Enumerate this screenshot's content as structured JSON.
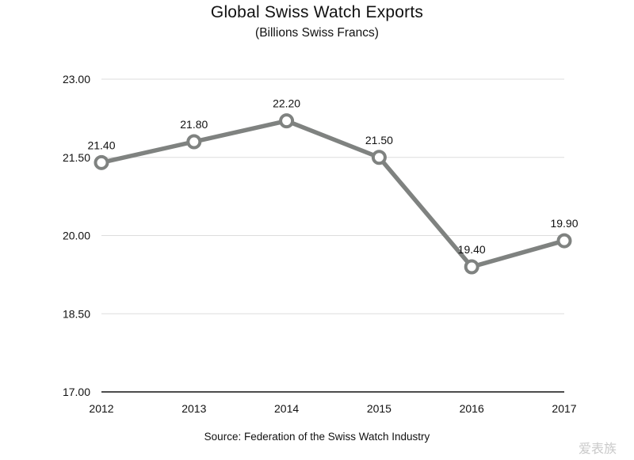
{
  "chart_data": {
    "type": "line",
    "title": "Global Swiss Watch Exports",
    "subtitle": "(Billions Swiss Francs)",
    "source": "Source: Federation of the Swiss Watch Industry",
    "categories": [
      "2012",
      "2013",
      "2014",
      "2015",
      "2016",
      "2017"
    ],
    "values": [
      21.4,
      21.8,
      22.2,
      21.5,
      19.4,
      19.9
    ],
    "data_labels": [
      "21.40",
      "21.80",
      "22.20",
      "21.50",
      "19.40",
      "19.90"
    ],
    "y_ticks": [
      "17.00",
      "18.50",
      "20.00",
      "21.50",
      "23.00"
    ],
    "ylim": [
      17.0,
      23.0
    ],
    "grid": true,
    "colors": {
      "line": "#7f8280",
      "grid": "#dddddd",
      "axis": "#111111"
    }
  },
  "watermark": "爱表族"
}
